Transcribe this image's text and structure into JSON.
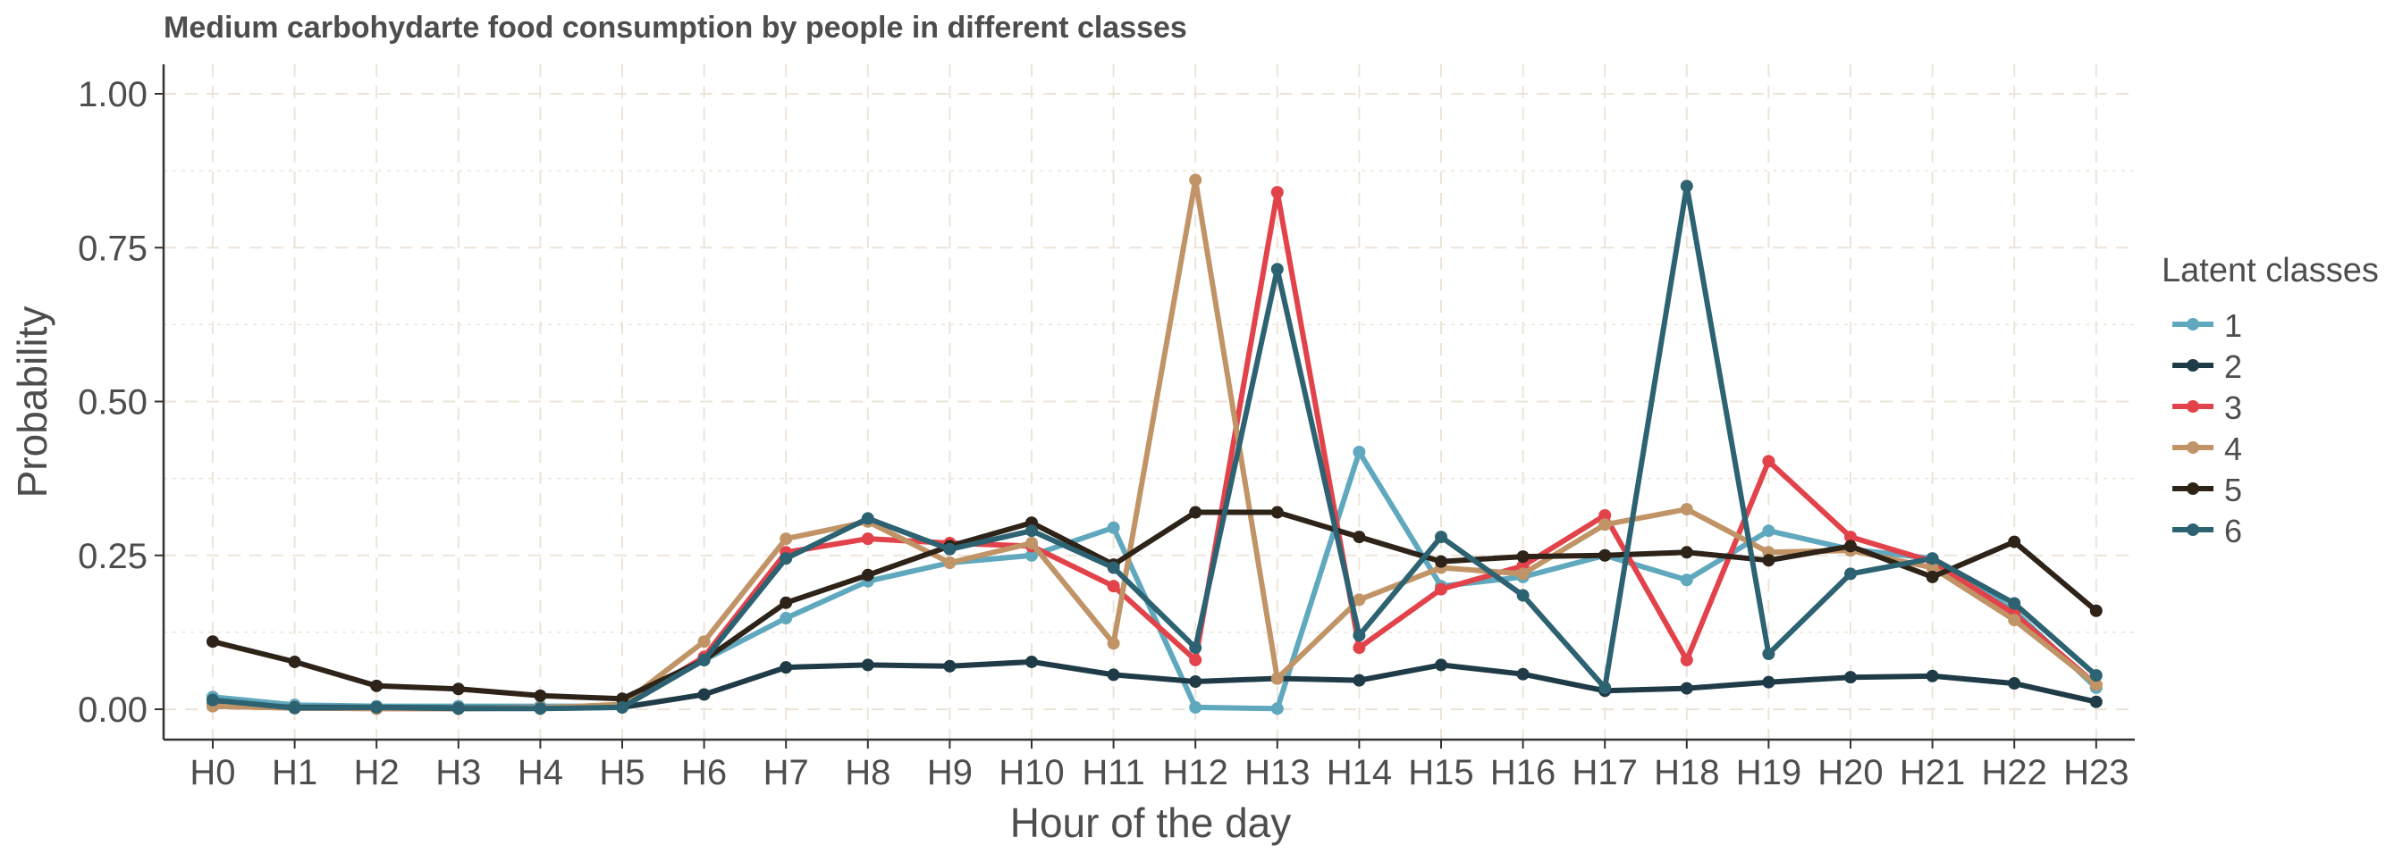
{
  "chart_data": {
    "type": "line",
    "title": "Medium carbohydarte food consumption by people in different classes",
    "xlabel": "Hour of the day",
    "ylabel": "Probability",
    "categories": [
      "H0",
      "H1",
      "H2",
      "H3",
      "H4",
      "H5",
      "H6",
      "H7",
      "H8",
      "H9",
      "H10",
      "H11",
      "H12",
      "H13",
      "H14",
      "H15",
      "H16",
      "H17",
      "H18",
      "H19",
      "H20",
      "H21",
      "H22",
      "H23"
    ],
    "ylim": [
      0,
      1.0
    ],
    "yticks": [
      0.0,
      0.25,
      0.5,
      0.75,
      1.0
    ],
    "ytick_labels": [
      "0.00",
      "0.25",
      "0.50",
      "0.75",
      "1.00"
    ],
    "grid": true,
    "legend": {
      "title": "Latent classes",
      "position": "right"
    },
    "series": [
      {
        "name": "1",
        "color": "#5fa8bd",
        "values": [
          0.02,
          0.007,
          0.005,
          0.005,
          0.005,
          0.005,
          0.08,
          0.148,
          0.208,
          0.238,
          0.25,
          0.295,
          0.003,
          0.001,
          0.418,
          0.2,
          0.215,
          0.25,
          0.21,
          0.29,
          0.26,
          0.245,
          0.16,
          0.035
        ]
      },
      {
        "name": "2",
        "color": "#1e3b47",
        "values": [
          0.008,
          0.003,
          0.003,
          0.002,
          0.002,
          0.003,
          0.024,
          0.068,
          0.072,
          0.07,
          0.077,
          0.056,
          0.045,
          0.05,
          0.047,
          0.072,
          0.057,
          0.03,
          0.034,
          0.044,
          0.052,
          0.054,
          0.042,
          0.012
        ]
      },
      {
        "name": "3",
        "color": "#e2424a",
        "values": [
          0.005,
          0.002,
          0.001,
          0.001,
          0.002,
          0.005,
          0.085,
          0.255,
          0.277,
          0.27,
          0.265,
          0.2,
          0.08,
          0.84,
          0.1,
          0.195,
          0.233,
          0.315,
          0.08,
          0.403,
          0.28,
          0.24,
          0.155,
          0.04
        ]
      },
      {
        "name": "4",
        "color": "#c09466",
        "values": [
          0.005,
          0.002,
          0.001,
          0.001,
          0.002,
          0.008,
          0.11,
          0.277,
          0.305,
          0.238,
          0.27,
          0.107,
          0.86,
          0.05,
          0.178,
          0.23,
          0.22,
          0.3,
          0.325,
          0.255,
          0.258,
          0.23,
          0.145,
          0.04
        ]
      },
      {
        "name": "5",
        "color": "#2e2319",
        "values": [
          0.11,
          0.077,
          0.038,
          0.033,
          0.022,
          0.017,
          0.08,
          0.173,
          0.218,
          0.265,
          0.303,
          0.235,
          0.32,
          0.32,
          0.28,
          0.24,
          0.248,
          0.25,
          0.255,
          0.242,
          0.265,
          0.215,
          0.272,
          0.16
        ]
      },
      {
        "name": "6",
        "color": "#2c6271",
        "values": [
          0.015,
          0.002,
          0.003,
          0.001,
          0.001,
          0.003,
          0.08,
          0.245,
          0.31,
          0.26,
          0.29,
          0.23,
          0.1,
          0.715,
          0.12,
          0.28,
          0.185,
          0.035,
          0.85,
          0.09,
          0.22,
          0.245,
          0.172,
          0.055
        ]
      }
    ]
  }
}
